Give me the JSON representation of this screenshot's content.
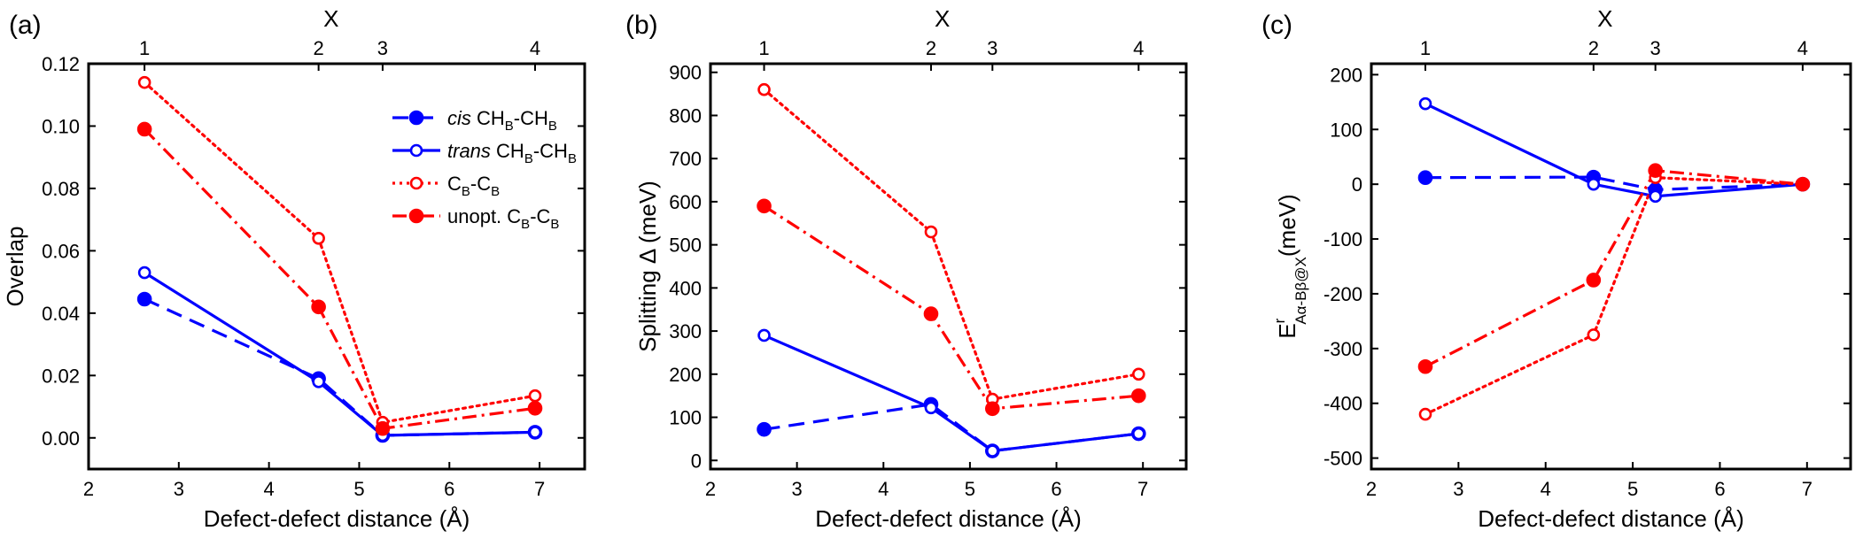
{
  "series_styles": {
    "cis": {
      "color": "#0000ff",
      "dash": "dashed",
      "marker": "filled"
    },
    "trans": {
      "color": "#0000ff",
      "dash": "solid",
      "marker": "open"
    },
    "cb": {
      "color": "#ff0000",
      "dash": "dotted",
      "marker": "open"
    },
    "unopt": {
      "color": "#ff0000",
      "dash": "dashdot",
      "marker": "filled"
    }
  },
  "legend": [
    {
      "key": "cis",
      "italic": "cis",
      "pre": "CH",
      "sub1": "B",
      "mid": "-CH",
      "sub2": "B"
    },
    {
      "key": "trans",
      "italic": "trans",
      "pre": "CH",
      "sub1": "B",
      "mid": "-CH",
      "sub2": "B"
    },
    {
      "key": "cb",
      "italic": "",
      "pre": "C",
      "sub1": "B",
      "mid": "-C",
      "sub2": "B"
    },
    {
      "key": "unopt",
      "italic": "",
      "pre": "unopt. C",
      "sub1": "B",
      "mid": "-C",
      "sub2": "B"
    }
  ],
  "chart_data": [
    {
      "type": "line",
      "panel_label": "(a)",
      "title": "",
      "xlabel": "Defect-defect distance (Å)",
      "ylabel": "Overlap",
      "xlim": [
        2,
        7.5
      ],
      "ylim": [
        -0.01,
        0.12
      ],
      "xticks": [
        2,
        3,
        4,
        5,
        6,
        7
      ],
      "xtick_labels": [
        "2",
        "3",
        "4",
        "5",
        "6",
        "7"
      ],
      "yticks": [
        0,
        0.02,
        0.04,
        0.06,
        0.08,
        0.1,
        0.12
      ],
      "ytick_labels": [
        "0.00",
        "0.02",
        "0.04",
        "0.06",
        "0.08",
        "0.10",
        "0.12"
      ],
      "top_axis_label": "X",
      "top_ticks": [
        2.62,
        4.55,
        5.26,
        6.95
      ],
      "top_tick_labels": [
        "1",
        "2",
        "3",
        "4"
      ],
      "x": [
        2.62,
        4.55,
        5.26,
        6.95
      ],
      "series": [
        {
          "name": "cis CH_B-CH_B",
          "style": "cis",
          "values": [
            0.0445,
            0.019,
            0.0008,
            0.0018
          ]
        },
        {
          "name": "trans CH_B-CH_B",
          "style": "trans",
          "values": [
            0.053,
            0.018,
            0.0008,
            0.0018
          ]
        },
        {
          "name": "C_B-C_B",
          "style": "cb",
          "values": [
            0.114,
            0.064,
            0.005,
            0.0135
          ]
        },
        {
          "name": "unopt. C_B-C_B",
          "style": "unopt",
          "values": [
            0.099,
            0.042,
            0.003,
            0.0095
          ]
        }
      ],
      "legend": "top-right"
    },
    {
      "type": "line",
      "panel_label": "(b)",
      "title": "",
      "xlabel": "Defect-defect distance (Å)",
      "ylabel": "Splitting Δ (meV)",
      "xlim": [
        2,
        7.5
      ],
      "ylim": [
        -20,
        920
      ],
      "xticks": [
        2,
        3,
        4,
        5,
        6,
        7
      ],
      "xtick_labels": [
        "2",
        "3",
        "4",
        "5",
        "6",
        "7"
      ],
      "yticks": [
        0,
        100,
        200,
        300,
        400,
        500,
        600,
        700,
        800,
        900
      ],
      "ytick_labels": [
        "0",
        "100",
        "200",
        "300",
        "400",
        "500",
        "600",
        "700",
        "800",
        "900"
      ],
      "top_axis_label": "X",
      "top_ticks": [
        2.62,
        4.55,
        5.26,
        6.95
      ],
      "top_tick_labels": [
        "1",
        "2",
        "3",
        "4"
      ],
      "x": [
        2.62,
        4.55,
        5.26,
        6.95
      ],
      "series": [
        {
          "name": "cis CH_B-CH_B",
          "style": "cis",
          "values": [
            72,
            130,
            22,
            62
          ]
        },
        {
          "name": "trans CH_B-CH_B",
          "style": "trans",
          "values": [
            290,
            122,
            22,
            62
          ]
        },
        {
          "name": "C_B-C_B",
          "style": "cb",
          "values": [
            860,
            530,
            142,
            200
          ]
        },
        {
          "name": "unopt. C_B-C_B",
          "style": "unopt",
          "values": [
            590,
            340,
            120,
            150
          ]
        }
      ]
    },
    {
      "type": "line",
      "panel_label": "(c)",
      "title": "",
      "xlabel": "Defect-defect distance (Å)",
      "ylabel_main": "E",
      "ylabel_sup": "r",
      "ylabel_sub": "Aα-Bβ@X",
      "ylabel_units": "(meV)",
      "xlim": [
        2,
        7.5
      ],
      "ylim": [
        -520,
        220
      ],
      "xticks": [
        2,
        3,
        4,
        5,
        6,
        7
      ],
      "xtick_labels": [
        "2",
        "3",
        "4",
        "5",
        "6",
        "7"
      ],
      "yticks": [
        -500,
        -400,
        -300,
        -200,
        -100,
        0,
        100,
        200
      ],
      "ytick_labels": [
        "-500",
        "-400",
        "-300",
        "-200",
        "-100",
        "0",
        "100",
        "200"
      ],
      "top_axis_label": "X",
      "top_ticks": [
        2.62,
        4.55,
        5.26,
        6.95
      ],
      "top_tick_labels": [
        "1",
        "2",
        "3",
        "4"
      ],
      "x": [
        2.62,
        4.55,
        5.26,
        6.95
      ],
      "series": [
        {
          "name": "cis CH_B-CH_B",
          "style": "cis",
          "values": [
            12,
            13,
            -10,
            0
          ]
        },
        {
          "name": "trans CH_B-CH_B",
          "style": "trans",
          "values": [
            147,
            0,
            -22,
            0
          ]
        },
        {
          "name": "C_B-C_B",
          "style": "cb",
          "values": [
            -420,
            -275,
            12,
            0
          ]
        },
        {
          "name": "unopt. C_B-C_B",
          "style": "unopt",
          "values": [
            -333,
            -175,
            25,
            0
          ]
        }
      ]
    }
  ]
}
